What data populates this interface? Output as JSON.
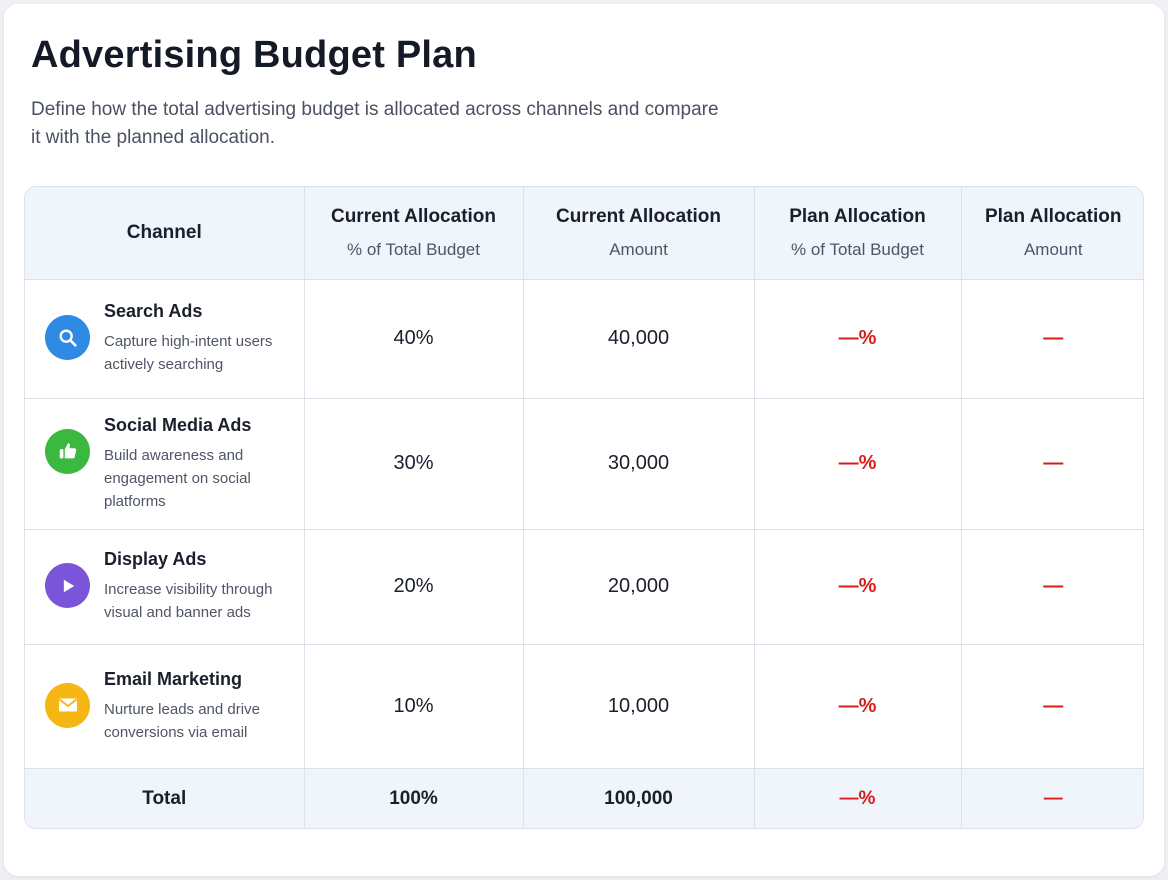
{
  "header": {
    "title": "Advertising Budget Plan",
    "description": "Define how the total advertising budget is allocated across channels and compare it with the planned allocation."
  },
  "table": {
    "columns": [
      {
        "main": "Channel",
        "sub": ""
      },
      {
        "main": "Current Allocation",
        "sub": "% of Total Budget"
      },
      {
        "main": "Current Allocation",
        "sub": "Amount"
      },
      {
        "main": "Plan Allocation",
        "sub": "% of Total Budget"
      },
      {
        "main": "Plan Allocation",
        "sub": "Amount"
      }
    ],
    "rows": [
      {
        "name": "Search Ads",
        "description": "Capture high-intent users actively searching",
        "icon": "search-icon",
        "color": "#2f8ae6",
        "current_pct": "40%",
        "current_amount": "40,000",
        "plan_pct": "—%",
        "plan_amount": "—"
      },
      {
        "name": "Social Media Ads",
        "description": "Build awareness and engagement on social platforms",
        "icon": "thumbs-up-icon",
        "color": "#3bb83f",
        "current_pct": "30%",
        "current_amount": "30,000",
        "plan_pct": "—%",
        "plan_amount": "—"
      },
      {
        "name": "Display Ads",
        "description": "Increase visibility through visual and banner ads",
        "icon": "play-icon",
        "color": "#7b55d9",
        "current_pct": "20%",
        "current_amount": "20,000",
        "plan_pct": "—%",
        "plan_amount": "—"
      },
      {
        "name": "Email Marketing",
        "description": "Nurture leads and drive conversions via email",
        "icon": "mail-icon",
        "color": "#f6b614",
        "current_pct": "10%",
        "current_amount": "10,000",
        "plan_pct": "—%",
        "plan_amount": "—"
      }
    ],
    "total": {
      "label": "Total",
      "current_pct": "100%",
      "current_amount": "100,000",
      "plan_pct": "—%",
      "plan_amount": "—"
    }
  }
}
